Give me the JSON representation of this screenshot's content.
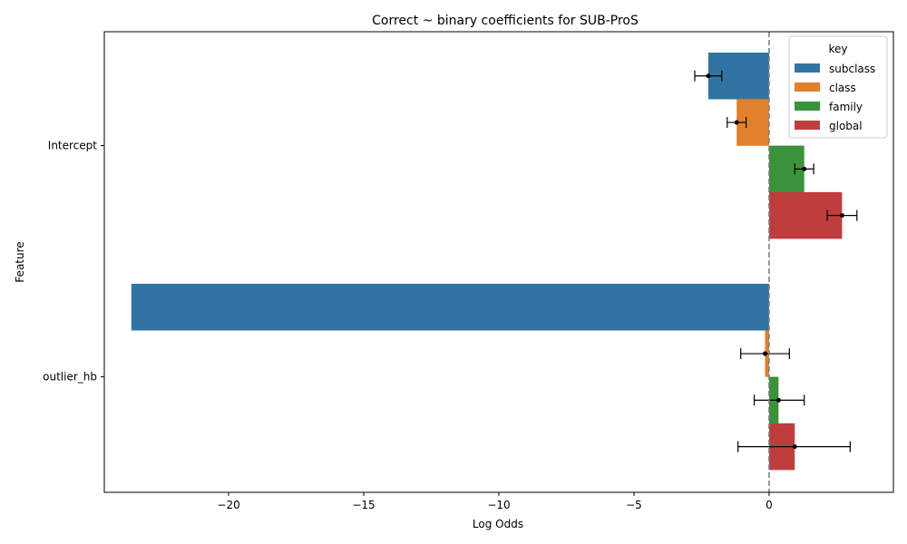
{
  "chart_data": {
    "type": "bar",
    "orientation": "horizontal",
    "title": "Correct ~ binary coefficients for SUB-ProS",
    "xlabel": "Log Odds",
    "ylabel": "Feature",
    "categories": [
      "Intercept",
      "outlier_hb"
    ],
    "xlim": [
      -24.6,
      4.6
    ],
    "xticks": [
      -20,
      -15,
      -10,
      -5,
      0
    ],
    "reference_line": 0,
    "legend": {
      "title": "key",
      "placement": "top-right"
    },
    "series": [
      {
        "name": "subclass",
        "color": "#3274a1",
        "values": [
          -2.25,
          -23.6
        ],
        "err_low": [
          -2.75,
          null
        ],
        "err_high": [
          -1.75,
          null
        ]
      },
      {
        "name": "class",
        "color": "#e1812c",
        "values": [
          -1.2,
          -0.15
        ],
        "err_low": [
          -1.55,
          -1.05
        ],
        "err_high": [
          -0.85,
          0.75
        ]
      },
      {
        "name": "family",
        "color": "#3a923a",
        "values": [
          1.3,
          0.35
        ],
        "err_low": [
          0.95,
          -0.55
        ],
        "err_high": [
          1.65,
          1.3
        ]
      },
      {
        "name": "global",
        "color": "#c03d3e",
        "values": [
          2.7,
          0.95
        ],
        "err_low": [
          2.15,
          -1.15
        ],
        "err_high": [
          3.25,
          3.0
        ]
      }
    ]
  }
}
